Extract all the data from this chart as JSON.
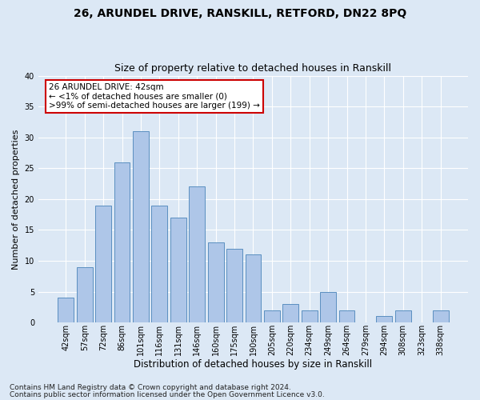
{
  "title_line1": "26, ARUNDEL DRIVE, RANSKILL, RETFORD, DN22 8PQ",
  "title_line2": "Size of property relative to detached houses in Ranskill",
  "xlabel": "Distribution of detached houses by size in Ranskill",
  "ylabel": "Number of detached properties",
  "categories": [
    "42sqm",
    "57sqm",
    "72sqm",
    "86sqm",
    "101sqm",
    "116sqm",
    "131sqm",
    "146sqm",
    "160sqm",
    "175sqm",
    "190sqm",
    "205sqm",
    "220sqm",
    "234sqm",
    "249sqm",
    "264sqm",
    "279sqm",
    "294sqm",
    "308sqm",
    "323sqm",
    "338sqm"
  ],
  "values": [
    4,
    9,
    19,
    26,
    31,
    19,
    17,
    22,
    13,
    12,
    11,
    2,
    3,
    2,
    5,
    2,
    0,
    1,
    2,
    0,
    2
  ],
  "bar_color": "#aec6e8",
  "bar_edge_color": "#5a8fc0",
  "background_color": "#dce8f5",
  "annotation_text": "26 ARUNDEL DRIVE: 42sqm\n← <1% of detached houses are smaller (0)\n>99% of semi-detached houses are larger (199) →",
  "annotation_box_color": "#ffffff",
  "annotation_box_edge": "#cc0000",
  "ylim": [
    0,
    40
  ],
  "yticks": [
    0,
    5,
    10,
    15,
    20,
    25,
    30,
    35,
    40
  ],
  "footer_line1": "Contains HM Land Registry data © Crown copyright and database right 2024.",
  "footer_line2": "Contains public sector information licensed under the Open Government Licence v3.0.",
  "title1_fontsize": 10,
  "title2_fontsize": 9,
  "xlabel_fontsize": 8.5,
  "ylabel_fontsize": 8,
  "tick_fontsize": 7,
  "footer_fontsize": 6.5,
  "annotation_fontsize": 7.5
}
